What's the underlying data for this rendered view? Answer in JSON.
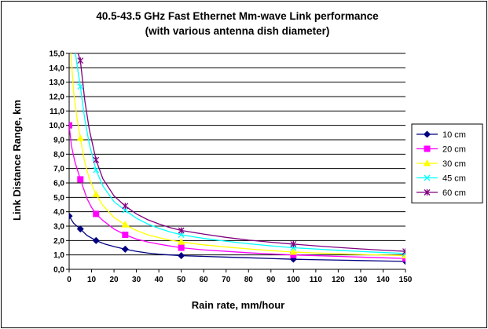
{
  "chart_data": {
    "type": "line",
    "title": "40.5-43.5 GHz Fast Ethernet Mm-wave Link performance",
    "subtitle": "(with various antenna dish diameter)",
    "xlabel": "Rain rate, mm/hour",
    "ylabel": "Link Distance Range, km",
    "xlim": [
      0,
      150
    ],
    "ylim": [
      0,
      15
    ],
    "x_ticks": [
      "0",
      "10",
      "20",
      "30",
      "40",
      "50",
      "60",
      "70",
      "80",
      "90",
      "100",
      "110",
      "120",
      "130",
      "140",
      "150"
    ],
    "y_ticks": [
      "0,0",
      "1,0",
      "2,0",
      "3,0",
      "4,0",
      "5,0",
      "6,0",
      "7,0",
      "8,0",
      "9,0",
      "10,0",
      "11,0",
      "12,0",
      "13,0",
      "14,0",
      "15,0"
    ],
    "grid": "horizontal",
    "legend_position": "right",
    "series": [
      {
        "name": "10 cm",
        "color": "#000080",
        "marker": "diamond",
        "points": [
          [
            0,
            3.7
          ],
          [
            5,
            2.8
          ],
          [
            12,
            2.0
          ],
          [
            25,
            1.4
          ],
          [
            50,
            0.95
          ],
          [
            100,
            0.7
          ],
          [
            150,
            0.55
          ]
        ],
        "curve": [
          [
            0,
            3.7
          ],
          [
            2,
            3.2
          ],
          [
            5,
            2.8
          ],
          [
            8,
            2.35
          ],
          [
            12,
            2.0
          ],
          [
            16,
            1.75
          ],
          [
            20,
            1.58
          ],
          [
            25,
            1.4
          ],
          [
            30,
            1.25
          ],
          [
            35,
            1.13
          ],
          [
            40,
            1.05
          ],
          [
            45,
            1.0
          ],
          [
            50,
            0.95
          ],
          [
            60,
            0.9
          ],
          [
            70,
            0.85
          ],
          [
            80,
            0.8
          ],
          [
            90,
            0.75
          ],
          [
            100,
            0.7
          ],
          [
            110,
            0.67
          ],
          [
            120,
            0.64
          ],
          [
            130,
            0.61
          ],
          [
            140,
            0.58
          ],
          [
            150,
            0.55
          ]
        ]
      },
      {
        "name": "20 cm",
        "color": "#ff00ff",
        "marker": "square",
        "points": [
          [
            0,
            10.0
          ],
          [
            5,
            6.25
          ],
          [
            12,
            3.85
          ],
          [
            25,
            2.4
          ],
          [
            50,
            1.5
          ],
          [
            100,
            1.0
          ],
          [
            150,
            0.75
          ]
        ],
        "curve": [
          [
            0,
            10.0
          ],
          [
            1,
            8.6
          ],
          [
            2.5,
            7.5
          ],
          [
            5,
            6.25
          ],
          [
            8,
            4.9
          ],
          [
            10,
            4.3
          ],
          [
            12,
            3.85
          ],
          [
            15,
            3.4
          ],
          [
            20,
            2.8
          ],
          [
            25,
            2.4
          ],
          [
            30,
            2.1
          ],
          [
            35,
            1.9
          ],
          [
            40,
            1.75
          ],
          [
            45,
            1.62
          ],
          [
            50,
            1.5
          ],
          [
            60,
            1.35
          ],
          [
            70,
            1.25
          ],
          [
            80,
            1.15
          ],
          [
            90,
            1.07
          ],
          [
            100,
            1.0
          ],
          [
            110,
            0.95
          ],
          [
            120,
            0.9
          ],
          [
            130,
            0.85
          ],
          [
            140,
            0.8
          ],
          [
            150,
            0.75
          ]
        ]
      },
      {
        "name": "30 cm",
        "color": "#ffff00",
        "marker": "triangle",
        "points": [
          [
            5,
            9.1
          ],
          [
            12,
            5.2
          ],
          [
            25,
            3.1
          ],
          [
            50,
            1.9
          ],
          [
            100,
            1.2
          ],
          [
            150,
            0.95
          ]
        ],
        "curve": [
          [
            0.8,
            15.0
          ],
          [
            2,
            12.3
          ],
          [
            3.5,
            10.5
          ],
          [
            5,
            9.1
          ],
          [
            7,
            7.4
          ],
          [
            9,
            6.3
          ],
          [
            12,
            5.2
          ],
          [
            15,
            4.45
          ],
          [
            20,
            3.6
          ],
          [
            25,
            3.1
          ],
          [
            30,
            2.7
          ],
          [
            35,
            2.4
          ],
          [
            40,
            2.2
          ],
          [
            45,
            2.03
          ],
          [
            50,
            1.9
          ],
          [
            60,
            1.7
          ],
          [
            70,
            1.55
          ],
          [
            80,
            1.42
          ],
          [
            90,
            1.3
          ],
          [
            100,
            1.2
          ],
          [
            110,
            1.14
          ],
          [
            120,
            1.08
          ],
          [
            130,
            1.03
          ],
          [
            140,
            0.99
          ],
          [
            150,
            0.95
          ]
        ]
      },
      {
        "name": "45 cm",
        "color": "#00ffff",
        "marker": "x",
        "points": [
          [
            5,
            12.7
          ],
          [
            12,
            6.9
          ],
          [
            25,
            4.1
          ],
          [
            50,
            2.4
          ],
          [
            100,
            1.5
          ],
          [
            150,
            1.1
          ]
        ],
        "curve": [
          [
            2.8,
            15.0
          ],
          [
            4,
            13.7
          ],
          [
            5,
            12.7
          ],
          [
            7,
            10.4
          ],
          [
            9,
            8.7
          ],
          [
            12,
            6.9
          ],
          [
            15,
            5.8
          ],
          [
            20,
            4.7
          ],
          [
            25,
            4.1
          ],
          [
            30,
            3.55
          ],
          [
            35,
            3.15
          ],
          [
            40,
            2.85
          ],
          [
            45,
            2.6
          ],
          [
            50,
            2.4
          ],
          [
            60,
            2.15
          ],
          [
            70,
            1.95
          ],
          [
            80,
            1.78
          ],
          [
            90,
            1.63
          ],
          [
            100,
            1.5
          ],
          [
            110,
            1.41
          ],
          [
            120,
            1.32
          ],
          [
            130,
            1.24
          ],
          [
            140,
            1.17
          ],
          [
            150,
            1.1
          ]
        ]
      },
      {
        "name": "60 cm",
        "color": "#800080",
        "marker": "star",
        "points": [
          [
            5,
            14.5
          ],
          [
            12,
            7.6
          ],
          [
            25,
            4.4
          ],
          [
            50,
            2.7
          ],
          [
            100,
            1.75
          ],
          [
            150,
            1.25
          ]
        ],
        "curve": [
          [
            4,
            15.0
          ],
          [
            5,
            14.5
          ],
          [
            7,
            11.7
          ],
          [
            9,
            9.7
          ],
          [
            12,
            7.6
          ],
          [
            15,
            6.3
          ],
          [
            20,
            5.1
          ],
          [
            25,
            4.4
          ],
          [
            30,
            3.85
          ],
          [
            35,
            3.45
          ],
          [
            40,
            3.15
          ],
          [
            45,
            2.9
          ],
          [
            50,
            2.7
          ],
          [
            60,
            2.45
          ],
          [
            70,
            2.22
          ],
          [
            80,
            2.03
          ],
          [
            90,
            1.88
          ],
          [
            100,
            1.75
          ],
          [
            110,
            1.63
          ],
          [
            120,
            1.52
          ],
          [
            130,
            1.42
          ],
          [
            140,
            1.33
          ],
          [
            150,
            1.25
          ]
        ]
      }
    ]
  }
}
